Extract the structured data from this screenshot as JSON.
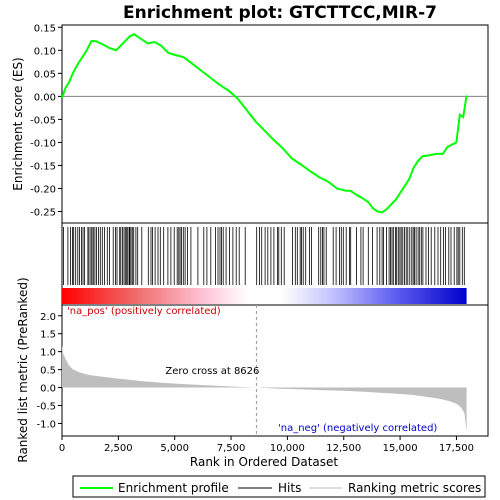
{
  "chart_data": {
    "type": "line",
    "title": "Enrichment plot: GTCTTCC,MIR-7",
    "top_panel": {
      "ylabel": "Enrichment score (ES)",
      "ylim": [
        -0.275,
        0.155
      ],
      "yticks": [
        0.15,
        0.1,
        0.05,
        0.0,
        -0.05,
        -0.1,
        -0.15,
        -0.2,
        -0.25
      ],
      "ytick_labels": [
        "0.15",
        "0.10",
        "0.05",
        "0.00",
        "-0.05",
        "-0.10",
        "-0.15",
        "-0.20",
        "-0.25"
      ],
      "series": [
        {
          "name": "Enrichment profile",
          "color": "#00ff00",
          "x": [
            0,
            150,
            300,
            500,
            700,
            900,
            1100,
            1300,
            1500,
            1800,
            2100,
            2400,
            2700,
            3000,
            3200,
            3500,
            3800,
            4100,
            4400,
            4700,
            5000,
            5400,
            5800,
            6200,
            6600,
            7000,
            7400,
            7800,
            8200,
            8600,
            9000,
            9400,
            9800,
            10200,
            10600,
            11000,
            11400,
            11800,
            12200,
            12600,
            12800,
            13100,
            13300,
            13600,
            13800,
            14000,
            14200,
            14400,
            14600,
            14800,
            15000,
            15200,
            15400,
            15600,
            15800,
            16000,
            16300,
            16600,
            16900,
            17100,
            17300,
            17500,
            17650,
            17800,
            17950
          ],
          "y": [
            -0.003,
            0.018,
            0.03,
            0.052,
            0.07,
            0.085,
            0.1,
            0.12,
            0.12,
            0.113,
            0.105,
            0.1,
            0.115,
            0.13,
            0.135,
            0.125,
            0.115,
            0.118,
            0.11,
            0.095,
            0.09,
            0.085,
            0.07,
            0.055,
            0.04,
            0.025,
            0.012,
            -0.005,
            -0.03,
            -0.055,
            -0.075,
            -0.095,
            -0.113,
            -0.135,
            -0.148,
            -0.162,
            -0.175,
            -0.185,
            -0.2,
            -0.205,
            -0.205,
            -0.215,
            -0.22,
            -0.23,
            -0.243,
            -0.25,
            -0.252,
            -0.245,
            -0.235,
            -0.225,
            -0.21,
            -0.195,
            -0.18,
            -0.155,
            -0.14,
            -0.13,
            -0.128,
            -0.125,
            -0.125,
            -0.11,
            -0.105,
            -0.1,
            -0.04,
            -0.045,
            0.002
          ]
        }
      ]
    },
    "hits_panel": {
      "legend_label": "Hits",
      "color": "#000000",
      "hit_ranks": [
        70,
        260,
        380,
        470,
        520,
        610,
        700,
        770,
        870,
        930,
        1000,
        1150,
        1200,
        1280,
        1330,
        1390,
        1460,
        1530,
        1620,
        1700,
        1790,
        1880,
        2010,
        2110,
        2270,
        2380,
        2440,
        2560,
        2610,
        2680,
        2750,
        2810,
        2870,
        2920,
        2980,
        3010,
        3060,
        3120,
        3180,
        3280,
        3360,
        3540,
        3830,
        3950,
        4020,
        4130,
        4260,
        4360,
        4510,
        4700,
        4830,
        4980,
        5110,
        5180,
        5240,
        5300,
        5380,
        5460,
        5570,
        5720,
        6030,
        6290,
        6430,
        6600,
        6810,
        6920,
        7010,
        7080,
        7150,
        7280,
        7430,
        7580,
        7730,
        7860,
        8130,
        8640,
        8760,
        8860,
        9010,
        9130,
        9270,
        9400,
        9560,
        9620,
        9730,
        9860,
        10220,
        10350,
        10440,
        10570,
        10620,
        10700,
        10810,
        10980,
        11070,
        11390,
        11480,
        11560,
        11620,
        11720,
        12030,
        12160,
        12310,
        12390,
        12480,
        12610,
        12760,
        12810,
        13060,
        13260,
        13360,
        13590,
        13770,
        13980,
        14100,
        14200,
        14260,
        14400,
        14510,
        14580,
        14640,
        14700,
        14800,
        14850,
        14920,
        14990,
        15050,
        15120,
        15200,
        15270,
        15340,
        15430,
        15520,
        15580,
        15640,
        15710,
        15800,
        15870,
        15940,
        16010,
        16150,
        16260,
        16380,
        16540,
        16680,
        16800,
        16930,
        17020,
        17160,
        17260,
        17400,
        17520,
        17580,
        17650,
        17760,
        17850
      ]
    },
    "ranking_panel": {
      "ylabel": "Ranked list metric (PreRanked)",
      "xlabel": "Rank in Ordered Dataset",
      "ylim": [
        -1.35,
        2.3
      ],
      "yticks": [
        2.0,
        1.5,
        1.0,
        0.5,
        0.0,
        -0.5,
        -1.0
      ],
      "ytick_labels": [
        "2.0",
        "1.5",
        "1.0",
        "0.5",
        "0.0",
        "-0.5",
        "-1.0"
      ],
      "xlim": [
        0,
        18900
      ],
      "xticks": [
        0,
        2500,
        5000,
        7500,
        10000,
        12500,
        15000,
        17500
      ],
      "xtick_labels": [
        "0",
        "2,500",
        "5,000",
        "7,500",
        "10,000",
        "12,500",
        "15,000",
        "17,500"
      ],
      "fill_color": "#bebebe",
      "metric_x": [
        0,
        50,
        150,
        300,
        500,
        800,
        1200,
        1800,
        2500,
        3500,
        4500,
        5500,
        6500,
        7500,
        8626,
        9500,
        10500,
        11500,
        12500,
        13500,
        14500,
        15500,
        16200,
        16800,
        17200,
        17500,
        17700,
        17850,
        17950
      ],
      "metric_y": [
        1.2,
        0.95,
        0.8,
        0.62,
        0.5,
        0.42,
        0.35,
        0.3,
        0.25,
        0.18,
        0.13,
        0.09,
        0.06,
        0.03,
        0.0,
        -0.03,
        -0.05,
        -0.07,
        -0.09,
        -0.12,
        -0.16,
        -0.2,
        -0.26,
        -0.32,
        -0.38,
        -0.45,
        -0.55,
        -0.7,
        -1.22
      ],
      "zero_cross_rank": 8626,
      "annotations": {
        "pos": "'na_pos' (positively correlated)",
        "neg": "'na_neg' (negatively correlated)",
        "zero": "Zero cross at 8626"
      }
    },
    "legend": {
      "items": [
        {
          "label": "Enrichment profile",
          "color": "#00ff00"
        },
        {
          "label": "Hits",
          "color": "#000000"
        },
        {
          "label": "Ranking metric scores",
          "color": "#bebebe"
        }
      ]
    },
    "colors": {
      "gradient_pos": "#ff0000",
      "gradient_neg": "#0000ff",
      "pos_label": "#cc0000",
      "neg_label": "#0000cc"
    }
  }
}
